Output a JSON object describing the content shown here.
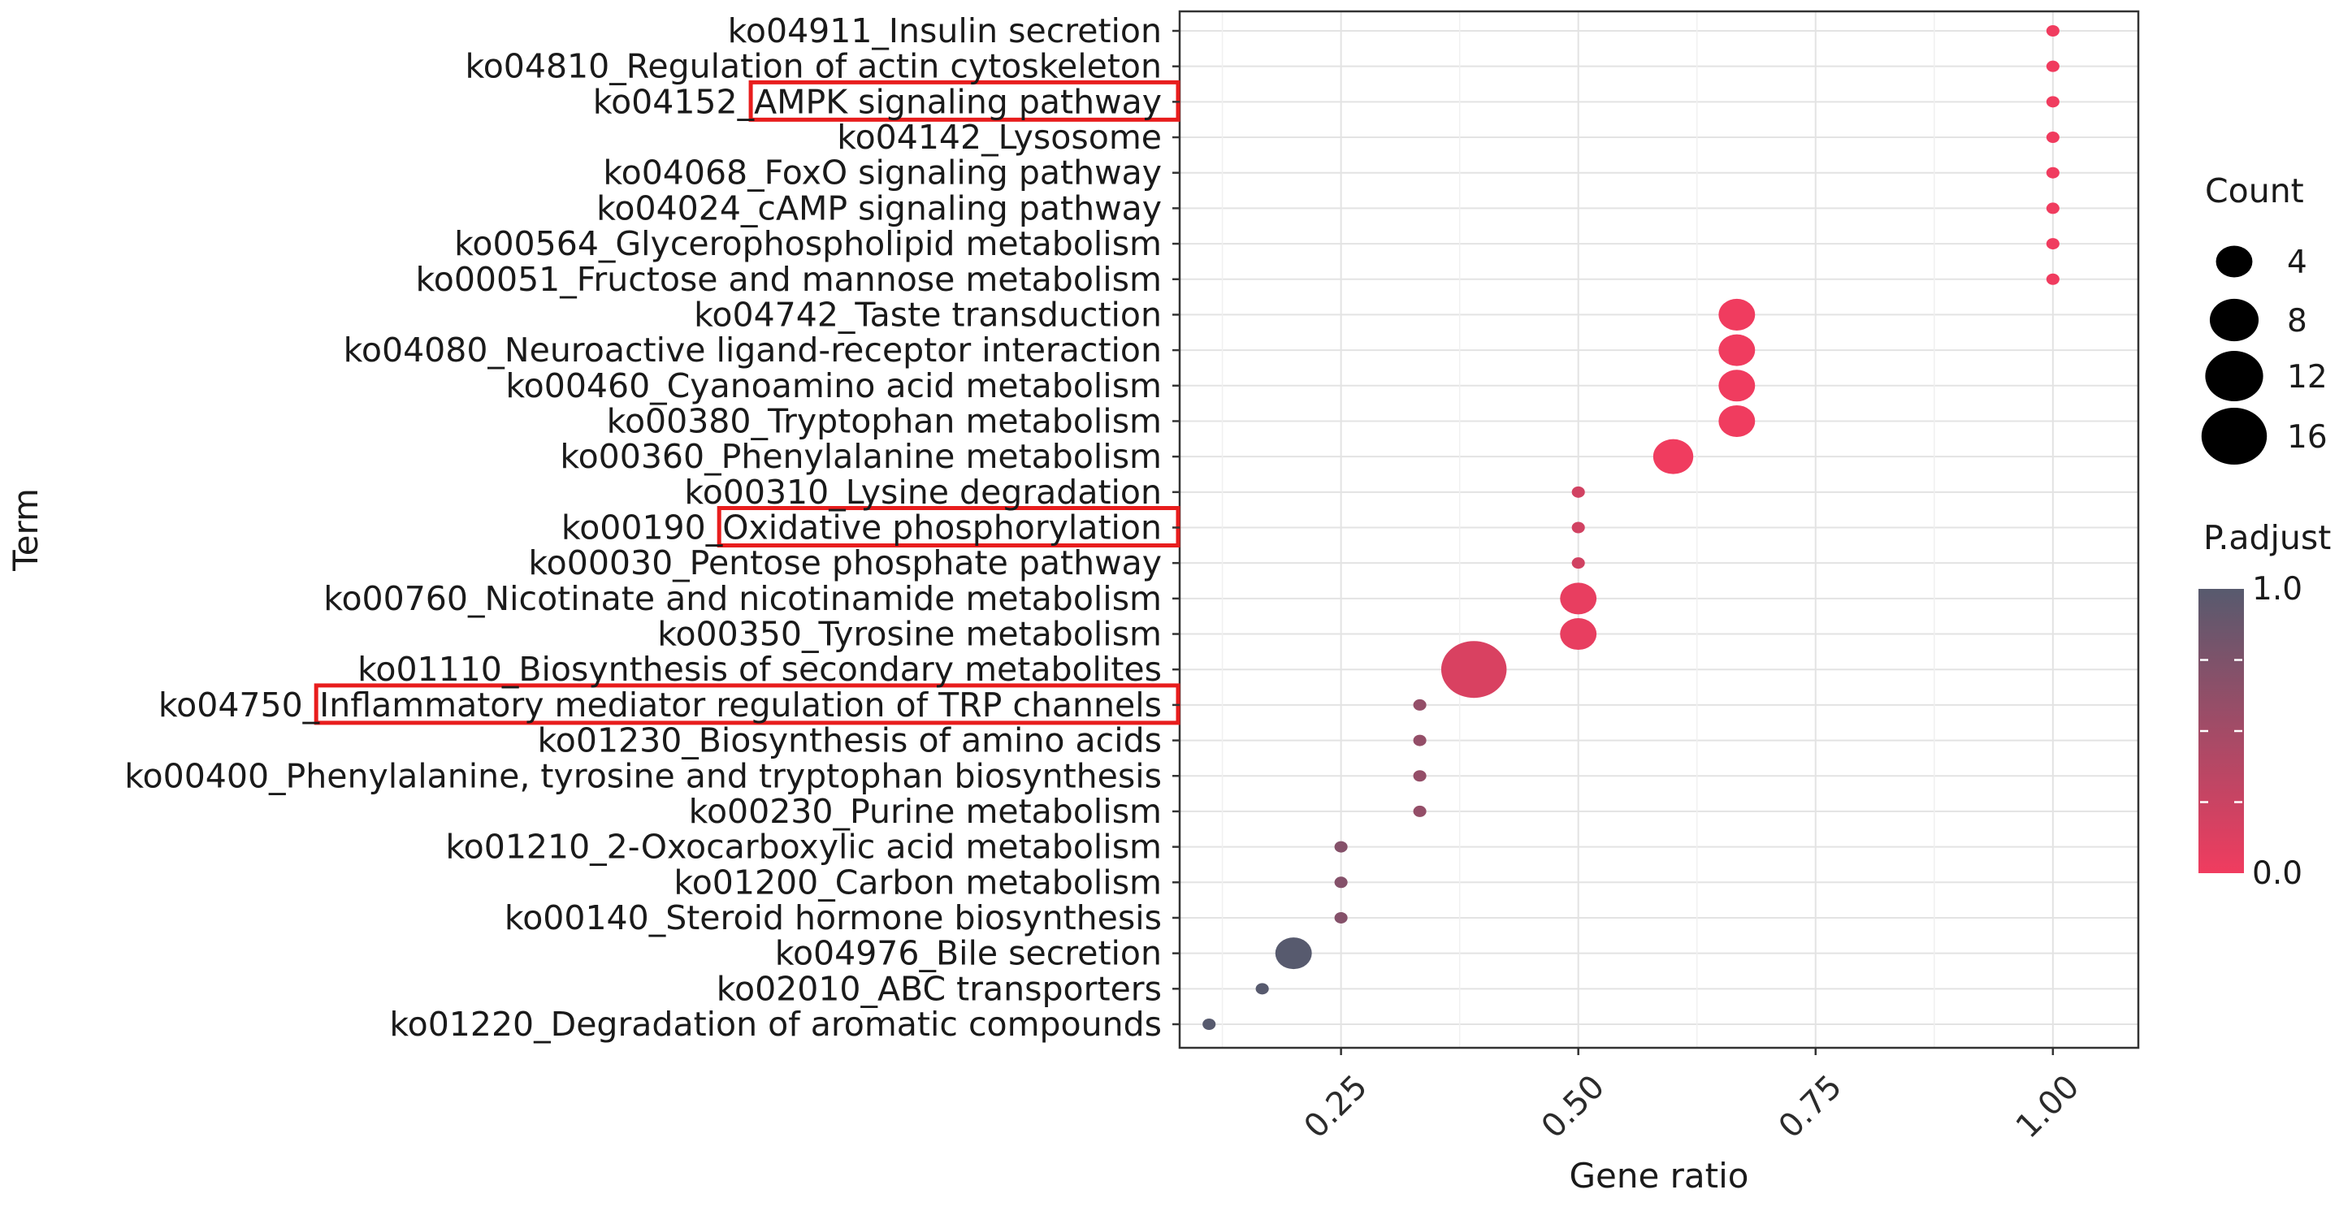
{
  "chart_data": {
    "type": "scatter",
    "title": "",
    "xlabel": "Gene ratio",
    "ylabel": "Term",
    "xlim": [
      0.08,
      1.09
    ],
    "xticks": [
      "0.25",
      "0.50",
      "0.75",
      "1.00"
    ],
    "xtick_values": [
      0.25,
      0.5,
      0.75,
      1.0
    ],
    "grid": true,
    "terms": [
      "ko04911_Insulin secretion",
      "ko04810_Regulation of actin cytoskeleton",
      "ko04152_AMPK signaling pathway",
      "ko04142_Lysosome",
      "ko04068_FoxO signaling pathway",
      "ko04024_cAMP signaling pathway",
      "ko00564_Glycerophospholipid metabolism",
      "ko00051_Fructose and mannose metabolism",
      "ko04742_Taste transduction",
      "ko04080_Neuroactive ligand-receptor interaction",
      "ko00460_Cyanoamino acid metabolism",
      "ko00380_Tryptophan metabolism",
      "ko00360_Phenylalanine metabolism",
      "ko00310_Lysine degradation",
      "ko00190_Oxidative phosphorylation",
      "ko00030_Pentose phosphate pathway",
      "ko00760_Nicotinate and nicotinamide metabolism",
      "ko00350_Tyrosine metabolism",
      "ko01110_Biosynthesis of secondary metabolites",
      "ko04750_Inflammatory mediator regulation of TRP channels",
      "ko01230_Biosynthesis of amino acids",
      "ko00400_Phenylalanine, tyrosine and tryptophan biosynthesis",
      "ko00230_Purine metabolism",
      "ko01210_2-Oxocarboxylic acid metabolism",
      "ko01200_Carbon metabolism",
      "ko00140_Steroid hormone biosynthesis",
      "ko04976_Bile secretion",
      "ko02010_ABC transporters",
      "ko01220_Degradation of aromatic compounds"
    ],
    "highlighted_terms": [
      "ko04152_AMPK signaling pathway",
      "ko00190_Oxidative phosphorylation",
      "ko04750_Inflammatory mediator regulation of TRP channels"
    ],
    "points": [
      {
        "term": "ko04911_Insulin secretion",
        "gene_ratio": 1.0,
        "count": 1,
        "p_adjust": 0.0
      },
      {
        "term": "ko04810_Regulation of actin cytoskeleton",
        "gene_ratio": 1.0,
        "count": 1,
        "p_adjust": 0.0
      },
      {
        "term": "ko04152_AMPK signaling pathway",
        "gene_ratio": 1.0,
        "count": 1,
        "p_adjust": 0.0
      },
      {
        "term": "ko04142_Lysosome",
        "gene_ratio": 1.0,
        "count": 1,
        "p_adjust": 0.0
      },
      {
        "term": "ko04068_FoxO signaling pathway",
        "gene_ratio": 1.0,
        "count": 1,
        "p_adjust": 0.0
      },
      {
        "term": "ko04024_cAMP signaling pathway",
        "gene_ratio": 1.0,
        "count": 1,
        "p_adjust": 0.0
      },
      {
        "term": "ko00564_Glycerophospholipid metabolism",
        "gene_ratio": 1.0,
        "count": 1,
        "p_adjust": 0.0
      },
      {
        "term": "ko00051_Fructose and mannose metabolism",
        "gene_ratio": 1.0,
        "count": 1,
        "p_adjust": 0.0
      },
      {
        "term": "ko04742_Taste transduction",
        "gene_ratio": 0.667,
        "count": 4,
        "p_adjust": 0.0
      },
      {
        "term": "ko04080_Neuroactive ligand-receptor interaction",
        "gene_ratio": 0.667,
        "count": 4,
        "p_adjust": 0.0
      },
      {
        "term": "ko00460_Cyanoamino acid metabolism",
        "gene_ratio": 0.667,
        "count": 4,
        "p_adjust": 0.0
      },
      {
        "term": "ko00380_Tryptophan metabolism",
        "gene_ratio": 0.667,
        "count": 4,
        "p_adjust": 0.0
      },
      {
        "term": "ko00360_Phenylalanine metabolism",
        "gene_ratio": 0.6,
        "count": 5,
        "p_adjust": 0.0
      },
      {
        "term": "ko00310_Lysine degradation",
        "gene_ratio": 0.5,
        "count": 1,
        "p_adjust": 0.2
      },
      {
        "term": "ko00190_Oxidative phosphorylation",
        "gene_ratio": 0.5,
        "count": 1,
        "p_adjust": 0.2
      },
      {
        "term": "ko00030_Pentose phosphate pathway",
        "gene_ratio": 0.5,
        "count": 1,
        "p_adjust": 0.2
      },
      {
        "term": "ko00760_Nicotinate and nicotinamide metabolism",
        "gene_ratio": 0.5,
        "count": 4,
        "p_adjust": 0.05
      },
      {
        "term": "ko00350_Tyrosine metabolism",
        "gene_ratio": 0.5,
        "count": 4,
        "p_adjust": 0.05
      },
      {
        "term": "ko01110_Biosynthesis of secondary metabolites",
        "gene_ratio": 0.39,
        "count": 16,
        "p_adjust": 0.15
      },
      {
        "term": "ko04750_Inflammatory mediator regulation of TRP channels",
        "gene_ratio": 0.333,
        "count": 1,
        "p_adjust": 0.6
      },
      {
        "term": "ko01230_Biosynthesis of amino acids",
        "gene_ratio": 0.333,
        "count": 1,
        "p_adjust": 0.6
      },
      {
        "term": "ko00400_Phenylalanine, tyrosine and tryptophan biosynthesis",
        "gene_ratio": 0.333,
        "count": 1,
        "p_adjust": 0.6
      },
      {
        "term": "ko00230_Purine metabolism",
        "gene_ratio": 0.333,
        "count": 1,
        "p_adjust": 0.6
      },
      {
        "term": "ko01210_2-Oxocarboxylic acid metabolism",
        "gene_ratio": 0.25,
        "count": 1,
        "p_adjust": 0.7
      },
      {
        "term": "ko01200_Carbon metabolism",
        "gene_ratio": 0.25,
        "count": 1,
        "p_adjust": 0.7
      },
      {
        "term": "ko00140_Steroid hormone biosynthesis",
        "gene_ratio": 0.25,
        "count": 1,
        "p_adjust": 0.7
      },
      {
        "term": "ko04976_Bile secretion",
        "gene_ratio": 0.2,
        "count": 4,
        "p_adjust": 1.0
      },
      {
        "term": "ko02010_ABC transporters",
        "gene_ratio": 0.167,
        "count": 1,
        "p_adjust": 1.0
      },
      {
        "term": "ko01220_Degradation of aromatic compounds",
        "gene_ratio": 0.111,
        "count": 1,
        "p_adjust": 1.0
      }
    ],
    "legend": {
      "size_title": "Count",
      "size_values": [
        4,
        8,
        12,
        16
      ],
      "size_labels": [
        "4",
        "8",
        "12",
        "16"
      ],
      "color_title": "P.adjust",
      "color_labels": [
        "1.0",
        "0.0"
      ],
      "color_low": "#f03c5f",
      "color_high": "#575a6e"
    }
  }
}
